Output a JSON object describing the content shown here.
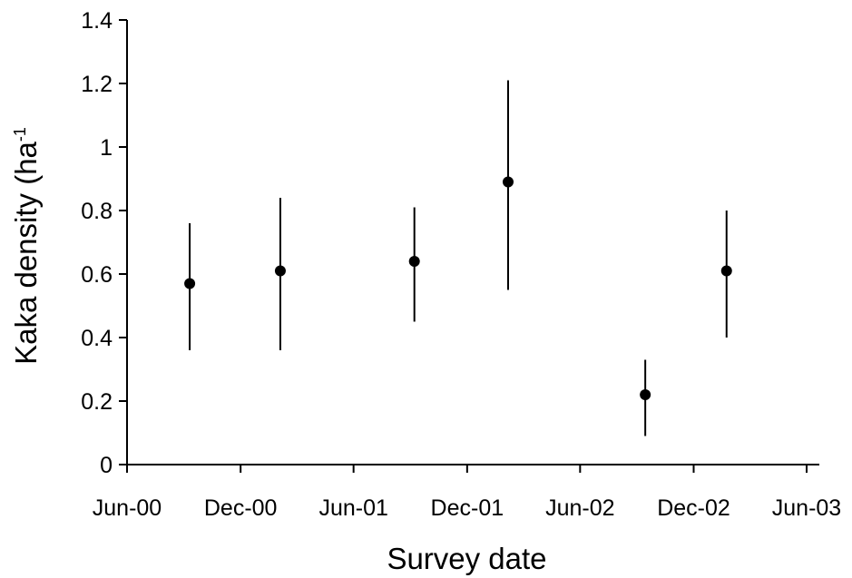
{
  "chart_data": {
    "type": "scatter",
    "xlabel": "Survey date",
    "ylabel": "Kaka density (ha",
    "ylabel_superscript": "-1",
    "xlim": [
      "2000-06-01",
      "2003-06-01"
    ],
    "ylim": [
      0,
      1.4
    ],
    "grid": false,
    "x_ticks": [
      {
        "date": "2000-06-01",
        "label": "Jun-00"
      },
      {
        "date": "2000-12-01",
        "label": "Dec-00"
      },
      {
        "date": "2001-06-01",
        "label": "Jun-01"
      },
      {
        "date": "2001-12-01",
        "label": "Dec-01"
      },
      {
        "date": "2002-06-01",
        "label": "Jun-02"
      },
      {
        "date": "2002-12-01",
        "label": "Dec-02"
      },
      {
        "date": "2003-06-01",
        "label": "Jun-03"
      }
    ],
    "y_ticks": [
      {
        "value": 0,
        "label": "0"
      },
      {
        "value": 0.2,
        "label": "0.2"
      },
      {
        "value": 0.4,
        "label": "0.4"
      },
      {
        "value": 0.6,
        "label": "0.6"
      },
      {
        "value": 0.8,
        "label": "0.8"
      },
      {
        "value": 1,
        "label": "1"
      },
      {
        "value": 1.2,
        "label": "1.2"
      },
      {
        "value": 1.4,
        "label": "1.4"
      }
    ],
    "points": [
      {
        "date": "2000-09-10",
        "y": 0.57,
        "lower": 0.36,
        "upper": 0.76
      },
      {
        "date": "2001-02-03",
        "y": 0.61,
        "lower": 0.36,
        "upper": 0.84
      },
      {
        "date": "2001-09-07",
        "y": 0.64,
        "lower": 0.45,
        "upper": 0.81
      },
      {
        "date": "2002-02-05",
        "y": 0.89,
        "lower": 0.55,
        "upper": 1.21
      },
      {
        "date": "2002-09-14",
        "y": 0.22,
        "lower": 0.09,
        "upper": 0.33
      },
      {
        "date": "2003-01-23",
        "y": 0.61,
        "lower": 0.4,
        "upper": 0.8
      }
    ],
    "colors": {
      "marker": "#000000",
      "axis": "#000000"
    }
  }
}
